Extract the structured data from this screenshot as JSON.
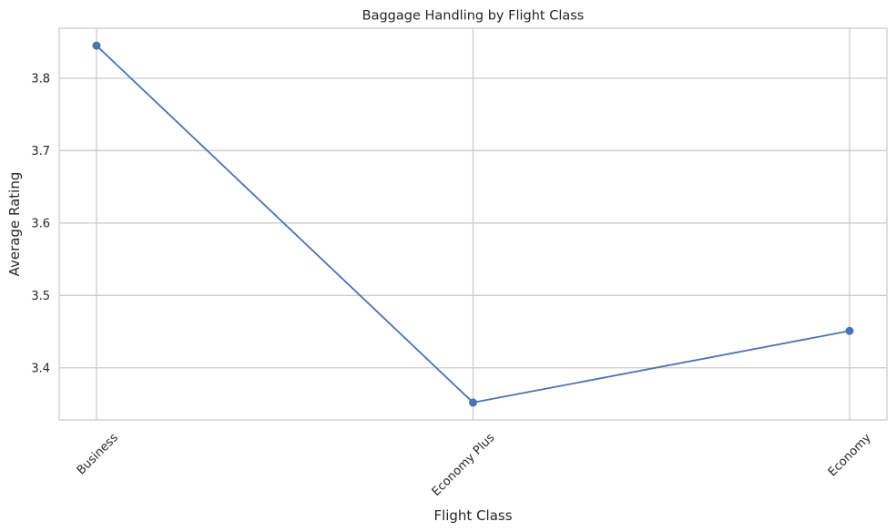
{
  "chart_data": {
    "type": "line",
    "title": "Baggage Handling by Flight Class",
    "xlabel": "Flight Class",
    "ylabel": "Average Rating",
    "categories": [
      "Business",
      "Economy Plus",
      "Economy"
    ],
    "series": [
      {
        "values": [
          3.845,
          3.352,
          3.451
        ]
      }
    ],
    "ylim": [
      3.328,
      3.869
    ],
    "yticks": [
      "3.4",
      "3.5",
      "3.6",
      "3.7",
      "3.8"
    ],
    "grid": true,
    "line_color": "#4c72b0",
    "grid_color": "#cccccc",
    "frame_color": "#cccccc",
    "xtick_rotation_deg": 45
  }
}
